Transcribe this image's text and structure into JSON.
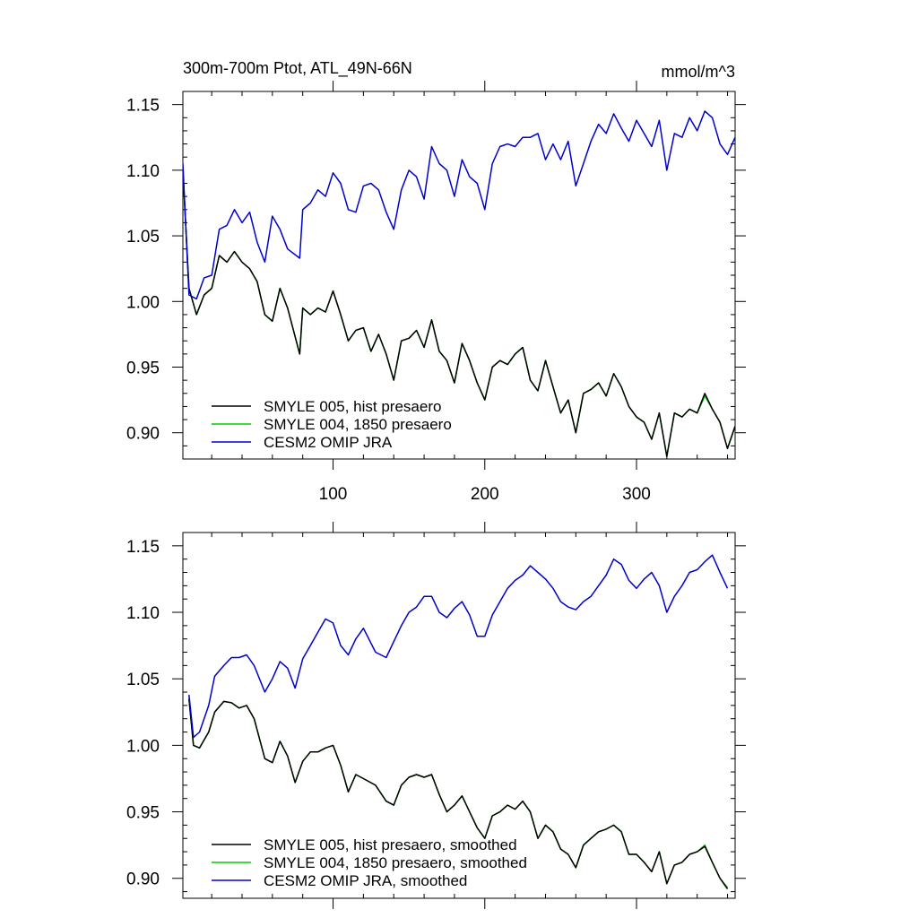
{
  "chart_data": [
    {
      "type": "line",
      "title": "300m-700m Ptot, ATL_49N-66N",
      "units": "mmol/m^3",
      "xlim": [
        1,
        365
      ],
      "ylim": [
        0.88,
        1.16
      ],
      "xticks": [
        100,
        200,
        300
      ],
      "xtick_labels": [
        "100",
        "200",
        "300"
      ],
      "yticks": [
        0.9,
        0.95,
        1.0,
        1.05,
        1.1,
        1.15
      ],
      "ytick_labels": [
        "0.90",
        "0.95",
        "1.00",
        "1.05",
        "1.10",
        "1.15"
      ],
      "legend_position": "bottom-left",
      "series": [
        {
          "name": "SMYLE 005, hist presaero",
          "color": "#000000",
          "x": [
            1,
            5,
            10,
            15,
            20,
            25,
            30,
            35,
            40,
            45,
            50,
            55,
            60,
            65,
            70,
            78,
            80,
            85,
            90,
            95,
            100,
            105,
            110,
            115,
            120,
            125,
            130,
            135,
            140,
            145,
            150,
            155,
            160,
            165,
            170,
            175,
            180,
            185,
            190,
            195,
            200,
            205,
            210,
            215,
            220,
            225,
            230,
            235,
            240,
            245,
            250,
            255,
            260,
            265,
            270,
            275,
            280,
            285,
            290,
            295,
            300,
            305,
            310,
            315,
            320,
            325,
            330,
            335,
            340,
            345,
            350,
            355,
            360,
            365
          ],
          "y": [
            1.1,
            1.01,
            0.99,
            1.005,
            1.01,
            1.035,
            1.03,
            1.038,
            1.03,
            1.025,
            1.015,
            0.99,
            0.985,
            1.01,
            0.995,
            0.96,
            0.995,
            0.99,
            0.995,
            0.992,
            1.008,
            0.99,
            0.97,
            0.978,
            0.98,
            0.962,
            0.975,
            0.96,
            0.94,
            0.97,
            0.972,
            0.978,
            0.965,
            0.986,
            0.962,
            0.955,
            0.938,
            0.968,
            0.955,
            0.938,
            0.925,
            0.95,
            0.955,
            0.952,
            0.96,
            0.965,
            0.94,
            0.932,
            0.955,
            0.935,
            0.915,
            0.925,
            0.9,
            0.93,
            0.933,
            0.938,
            0.928,
            0.945,
            0.935,
            0.92,
            0.912,
            0.908,
            0.895,
            0.915,
            0.882,
            0.915,
            0.912,
            0.918,
            0.915,
            0.93,
            0.918,
            0.908,
            0.888,
            0.905
          ]
        },
        {
          "name": "SMYLE 004, 1850 presaero",
          "color": "#00cc00",
          "x": [
            1,
            5,
            10,
            15,
            20,
            25,
            30,
            35,
            40,
            45,
            50,
            55,
            60,
            65,
            70,
            78,
            80,
            85,
            90,
            95,
            100,
            105,
            110,
            115,
            120,
            125,
            130,
            135,
            140,
            145,
            150,
            155,
            160,
            165,
            170,
            175,
            180,
            185,
            190,
            195,
            200,
            205,
            210,
            215,
            220,
            225,
            230,
            235,
            240,
            245,
            250,
            255,
            260,
            265,
            270,
            275,
            280,
            285,
            290,
            295,
            300,
            305,
            310,
            315,
            320,
            325,
            330,
            335,
            340,
            345,
            350,
            355,
            360,
            365
          ],
          "y": [
            1.1,
            1.01,
            0.99,
            1.005,
            1.01,
            1.035,
            1.03,
            1.038,
            1.03,
            1.025,
            1.015,
            0.99,
            0.985,
            1.01,
            0.995,
            0.96,
            0.995,
            0.99,
            0.995,
            0.992,
            1.008,
            0.99,
            0.97,
            0.978,
            0.98,
            0.962,
            0.975,
            0.96,
            0.94,
            0.97,
            0.972,
            0.978,
            0.965,
            0.986,
            0.962,
            0.955,
            0.938,
            0.968,
            0.955,
            0.938,
            0.925,
            0.95,
            0.955,
            0.952,
            0.96,
            0.965,
            0.94,
            0.932,
            0.955,
            0.935,
            0.915,
            0.925,
            0.9,
            0.93,
            0.933,
            0.938,
            0.928,
            0.945,
            0.935,
            0.92,
            0.912,
            0.908,
            0.895,
            0.915,
            0.882,
            0.915,
            0.912,
            0.918,
            0.915,
            0.928,
            0.918,
            0.908,
            0.888,
            0.905
          ]
        },
        {
          "name": "CESM2 OMIP JRA",
          "color": "#0000cc",
          "x": [
            1,
            5,
            10,
            15,
            20,
            25,
            30,
            35,
            40,
            45,
            50,
            55,
            60,
            65,
            70,
            78,
            80,
            85,
            90,
            95,
            100,
            105,
            110,
            115,
            120,
            125,
            130,
            135,
            140,
            145,
            150,
            155,
            160,
            165,
            170,
            175,
            180,
            185,
            190,
            195,
            200,
            205,
            210,
            215,
            220,
            225,
            230,
            235,
            240,
            245,
            250,
            255,
            260,
            265,
            270,
            275,
            280,
            285,
            290,
            295,
            300,
            305,
            310,
            315,
            320,
            325,
            330,
            335,
            340,
            345,
            350,
            355,
            360,
            365
          ],
          "y": [
            1.105,
            1.005,
            1.002,
            1.018,
            1.02,
            1.055,
            1.058,
            1.07,
            1.06,
            1.068,
            1.045,
            1.03,
            1.065,
            1.055,
            1.04,
            1.033,
            1.07,
            1.075,
            1.085,
            1.08,
            1.098,
            1.09,
            1.07,
            1.068,
            1.088,
            1.09,
            1.085,
            1.068,
            1.055,
            1.085,
            1.1,
            1.095,
            1.078,
            1.118,
            1.105,
            1.1,
            1.08,
            1.108,
            1.095,
            1.09,
            1.07,
            1.105,
            1.118,
            1.12,
            1.118,
            1.125,
            1.125,
            1.128,
            1.108,
            1.12,
            1.108,
            1.122,
            1.088,
            1.105,
            1.122,
            1.135,
            1.128,
            1.143,
            1.132,
            1.122,
            1.138,
            1.128,
            1.118,
            1.138,
            1.1,
            1.128,
            1.125,
            1.14,
            1.13,
            1.145,
            1.14,
            1.12,
            1.112,
            1.125
          ]
        }
      ]
    },
    {
      "type": "line",
      "xlim": [
        1,
        365
      ],
      "ylim": [
        0.885,
        1.16
      ],
      "xticks": [
        100,
        200,
        300
      ],
      "yticks": [
        0.9,
        0.95,
        1.0,
        1.05,
        1.1,
        1.15
      ],
      "ytick_labels": [
        "0.90",
        "0.95",
        "1.00",
        "1.05",
        "1.10",
        "1.15"
      ],
      "legend_position": "bottom-left",
      "series": [
        {
          "name": "SMYLE 005, hist presaero, smoothed",
          "color": "#000000",
          "x": [
            5,
            8,
            12,
            18,
            22,
            28,
            33,
            38,
            43,
            48,
            55,
            60,
            65,
            70,
            75,
            80,
            85,
            90,
            95,
            100,
            105,
            110,
            115,
            120,
            128,
            135,
            140,
            145,
            150,
            155,
            160,
            165,
            170,
            175,
            180,
            185,
            190,
            195,
            200,
            205,
            210,
            215,
            220,
            225,
            230,
            235,
            240,
            245,
            250,
            255,
            260,
            265,
            270,
            275,
            280,
            285,
            290,
            295,
            300,
            305,
            310,
            315,
            320,
            325,
            330,
            335,
            340,
            345,
            350,
            355,
            360
          ],
          "y": [
            1.035,
            1.0,
            0.998,
            1.01,
            1.025,
            1.033,
            1.032,
            1.028,
            1.03,
            1.02,
            0.99,
            0.987,
            1.003,
            0.992,
            0.972,
            0.988,
            0.995,
            0.995,
            0.998,
            1.0,
            0.985,
            0.965,
            0.978,
            0.975,
            0.97,
            0.958,
            0.955,
            0.97,
            0.976,
            0.978,
            0.976,
            0.978,
            0.963,
            0.95,
            0.955,
            0.962,
            0.95,
            0.938,
            0.93,
            0.947,
            0.95,
            0.955,
            0.952,
            0.958,
            0.95,
            0.93,
            0.94,
            0.935,
            0.922,
            0.918,
            0.908,
            0.925,
            0.93,
            0.935,
            0.937,
            0.94,
            0.935,
            0.918,
            0.918,
            0.912,
            0.905,
            0.92,
            0.896,
            0.91,
            0.912,
            0.918,
            0.92,
            0.924,
            0.912,
            0.9,
            0.892
          ]
        },
        {
          "name": "SMYLE 004, 1850 presaero, smoothed",
          "color": "#00cc00",
          "x": [
            5,
            8,
            12,
            18,
            22,
            28,
            33,
            38,
            43,
            48,
            55,
            60,
            65,
            70,
            75,
            80,
            85,
            90,
            95,
            100,
            105,
            110,
            115,
            120,
            128,
            135,
            140,
            145,
            150,
            155,
            160,
            165,
            170,
            175,
            180,
            185,
            190,
            195,
            200,
            205,
            210,
            215,
            220,
            225,
            230,
            235,
            240,
            245,
            250,
            255,
            260,
            265,
            270,
            275,
            280,
            285,
            290,
            295,
            300,
            305,
            310,
            315,
            320,
            325,
            330,
            335,
            340,
            345,
            350,
            355,
            360
          ],
          "y": [
            1.035,
            1.0,
            0.998,
            1.01,
            1.025,
            1.033,
            1.032,
            1.028,
            1.03,
            1.02,
            0.99,
            0.987,
            1.003,
            0.992,
            0.972,
            0.988,
            0.995,
            0.995,
            0.998,
            1.0,
            0.985,
            0.965,
            0.978,
            0.975,
            0.97,
            0.958,
            0.955,
            0.97,
            0.976,
            0.978,
            0.976,
            0.978,
            0.963,
            0.95,
            0.955,
            0.962,
            0.95,
            0.938,
            0.93,
            0.947,
            0.95,
            0.955,
            0.952,
            0.958,
            0.95,
            0.93,
            0.94,
            0.935,
            0.922,
            0.918,
            0.908,
            0.925,
            0.93,
            0.935,
            0.937,
            0.94,
            0.935,
            0.918,
            0.918,
            0.912,
            0.905,
            0.92,
            0.896,
            0.91,
            0.912,
            0.918,
            0.92,
            0.925,
            0.912,
            0.9,
            0.893
          ]
        },
        {
          "name": "CESM2 OMIP JRA, smoothed",
          "color": "#0000cc",
          "x": [
            5,
            8,
            12,
            18,
            22,
            28,
            33,
            38,
            43,
            48,
            55,
            60,
            65,
            70,
            75,
            80,
            85,
            90,
            95,
            100,
            105,
            110,
            115,
            120,
            128,
            135,
            140,
            145,
            150,
            155,
            160,
            165,
            170,
            175,
            180,
            185,
            190,
            195,
            200,
            205,
            210,
            215,
            220,
            225,
            230,
            235,
            240,
            245,
            250,
            255,
            260,
            265,
            270,
            275,
            280,
            285,
            290,
            295,
            300,
            305,
            310,
            315,
            320,
            325,
            330,
            335,
            340,
            345,
            350,
            355,
            360
          ],
          "y": [
            1.038,
            1.006,
            1.01,
            1.03,
            1.052,
            1.06,
            1.066,
            1.066,
            1.068,
            1.06,
            1.04,
            1.05,
            1.063,
            1.058,
            1.043,
            1.065,
            1.075,
            1.085,
            1.095,
            1.092,
            1.075,
            1.068,
            1.08,
            1.088,
            1.07,
            1.066,
            1.078,
            1.09,
            1.1,
            1.104,
            1.112,
            1.112,
            1.1,
            1.096,
            1.103,
            1.108,
            1.098,
            1.082,
            1.082,
            1.098,
            1.108,
            1.118,
            1.124,
            1.128,
            1.135,
            1.13,
            1.125,
            1.118,
            1.108,
            1.104,
            1.102,
            1.108,
            1.112,
            1.12,
            1.128,
            1.14,
            1.136,
            1.124,
            1.118,
            1.125,
            1.13,
            1.12,
            1.1,
            1.112,
            1.12,
            1.13,
            1.132,
            1.138,
            1.143,
            1.13,
            1.118
          ]
        }
      ]
    }
  ]
}
